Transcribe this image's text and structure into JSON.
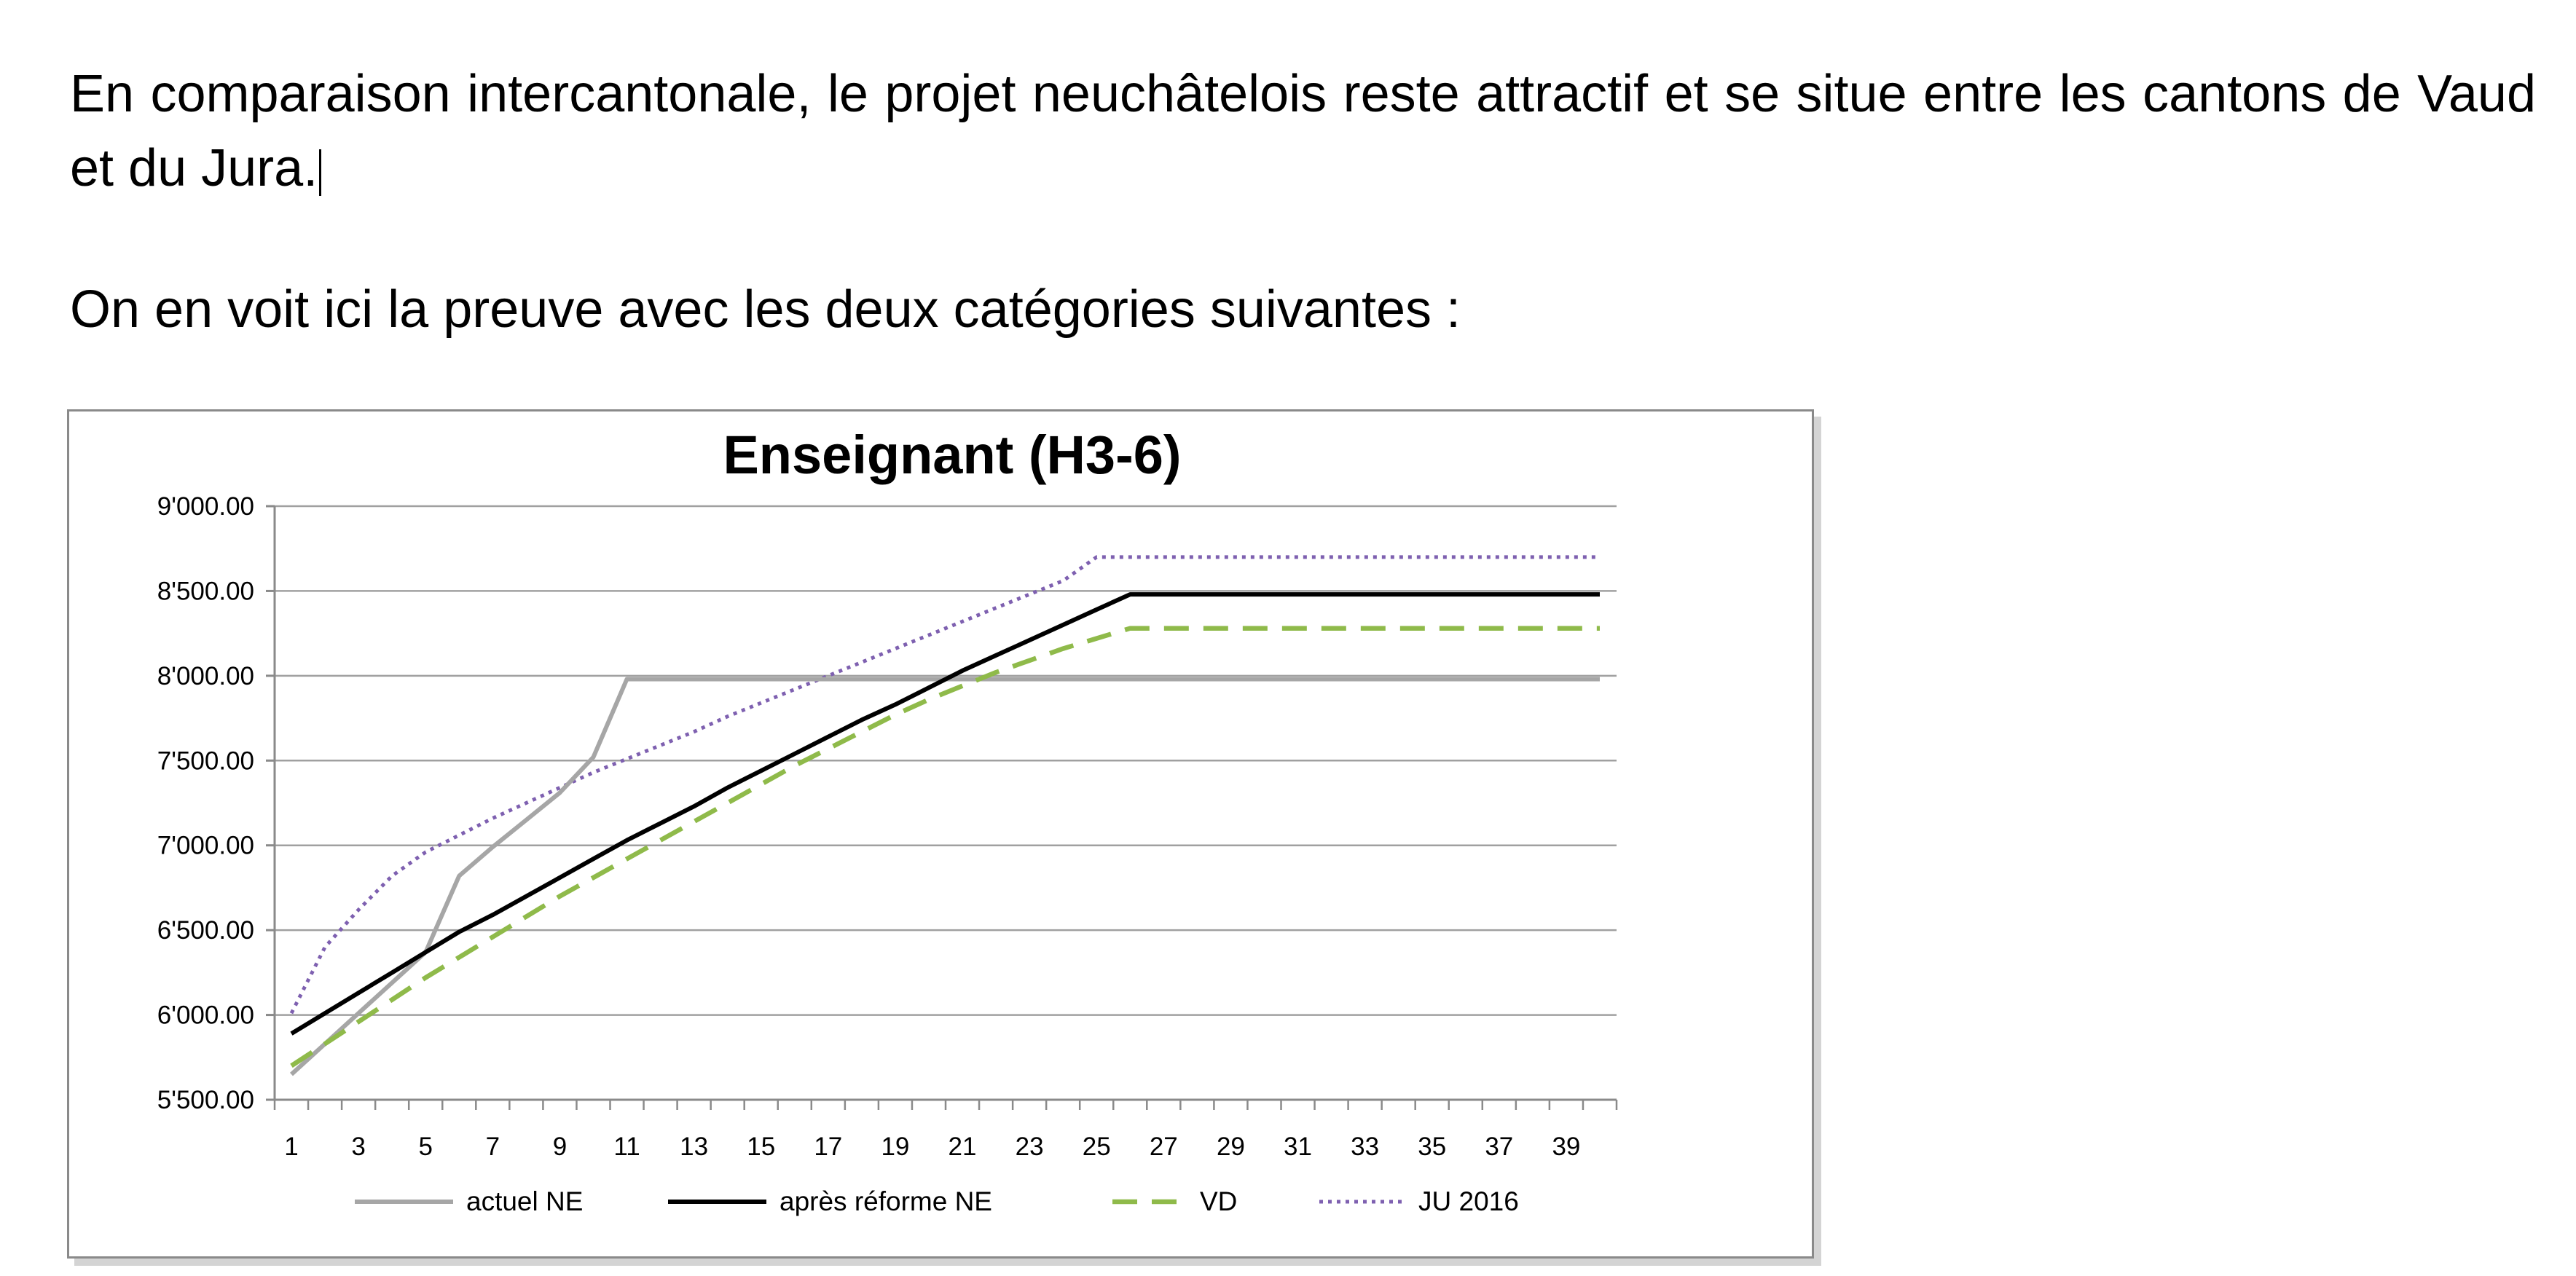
{
  "document": {
    "paragraph1": "En comparaison intercantonale, le projet neuchâtelois reste attractif et se situe entre les cantons de Vaud et du Jura.",
    "paragraph2": "On en voit ici la preuve avec les deux catégories suivantes :"
  },
  "chart_data": {
    "type": "line",
    "title": "Enseignant (H3-6)",
    "xlabel": "",
    "ylabel": "",
    "x": [
      1,
      2,
      3,
      4,
      5,
      6,
      7,
      8,
      9,
      10,
      11,
      12,
      13,
      14,
      15,
      16,
      17,
      18,
      19,
      20,
      21,
      22,
      23,
      24,
      25,
      26,
      27,
      28,
      29,
      30,
      31,
      32,
      33,
      34,
      35,
      36,
      37,
      38,
      39,
      40
    ],
    "xtick_labels": [
      "1",
      "3",
      "5",
      "7",
      "9",
      "11",
      "13",
      "15",
      "17",
      "19",
      "21",
      "23",
      "25",
      "27",
      "29",
      "31",
      "33",
      "35",
      "37",
      "39"
    ],
    "ylim": [
      5500,
      9000
    ],
    "ytick_values": [
      5500,
      6000,
      6500,
      7000,
      7500,
      8000,
      8500,
      9000
    ],
    "ytick_labels": [
      "5'500.00",
      "6'000.00",
      "6'500.00",
      "7'000.00",
      "7'500.00",
      "8'000.00",
      "8'500.00",
      "9'000.00"
    ],
    "grid": true,
    "legend_position": "bottom",
    "series": [
      {
        "name": "actuel NE",
        "color": "#a6a6a6",
        "style": "solid",
        "values": [
          5650,
          5830,
          6010,
          6190,
          6370,
          6820,
          6990,
          7150,
          7310,
          7520,
          7980,
          7980,
          7980,
          7980,
          7980,
          7980,
          7980,
          7980,
          7980,
          7980,
          7980,
          7980,
          7980,
          7980,
          7980,
          7980,
          7980,
          7980,
          7980,
          7980,
          7980,
          7980,
          7980,
          7980,
          7980,
          7980,
          7980,
          7980,
          7980,
          7980
        ]
      },
      {
        "name": "après réforme  NE",
        "color": "#000000",
        "style": "solid",
        "values": [
          5890,
          6010,
          6130,
          6250,
          6370,
          6490,
          6590,
          6700,
          6810,
          6920,
          7030,
          7130,
          7230,
          7340,
          7440,
          7540,
          7640,
          7740,
          7830,
          7930,
          8030,
          8120,
          8210,
          8300,
          8390,
          8480,
          8480,
          8480,
          8480,
          8480,
          8480,
          8480,
          8480,
          8480,
          8480,
          8480,
          8480,
          8480,
          8480,
          8480
        ]
      },
      {
        "name": "VD",
        "color": "#8fba4a",
        "style": "dashed",
        "values": [
          5700,
          5830,
          5960,
          6090,
          6220,
          6340,
          6460,
          6580,
          6700,
          6810,
          6920,
          7030,
          7140,
          7250,
          7360,
          7470,
          7570,
          7670,
          7770,
          7860,
          7940,
          8020,
          8090,
          8160,
          8220,
          8280,
          8280,
          8280,
          8280,
          8280,
          8280,
          8280,
          8280,
          8280,
          8280,
          8280,
          8280,
          8280,
          8280,
          8280
        ]
      },
      {
        "name": "JU 2016",
        "color": "#7e60b0",
        "style": "dotted",
        "values": [
          6010,
          6400,
          6620,
          6820,
          6960,
          7060,
          7160,
          7250,
          7340,
          7430,
          7510,
          7590,
          7670,
          7760,
          7840,
          7920,
          8000,
          8080,
          8160,
          8240,
          8320,
          8400,
          8480,
          8560,
          8700,
          8700,
          8700,
          8700,
          8700,
          8700,
          8700,
          8700,
          8700,
          8700,
          8700,
          8700,
          8700,
          8700,
          8700,
          8700
        ]
      }
    ]
  }
}
